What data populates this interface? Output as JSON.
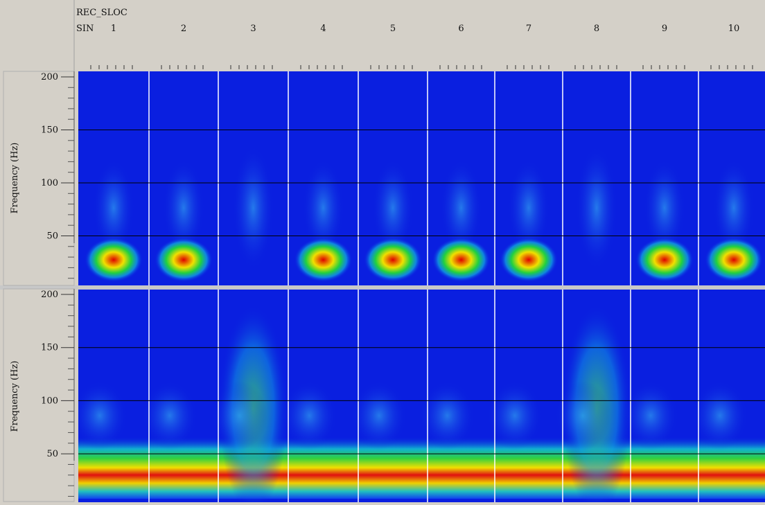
{
  "header": {
    "row_label_1": "REC_SLOC",
    "row_label_2": "SIN",
    "traces": [
      "1",
      "2",
      "3",
      "4",
      "5",
      "6",
      "7",
      "8",
      "9",
      "10"
    ]
  },
  "panels": [
    {
      "axis_label": "Frequency (Hz)",
      "ticks": [
        "50",
        "100",
        "150",
        "200"
      ]
    },
    {
      "axis_label": "Frequency (Hz)",
      "ticks": [
        "50",
        "100",
        "150",
        "200"
      ]
    }
  ]
}
